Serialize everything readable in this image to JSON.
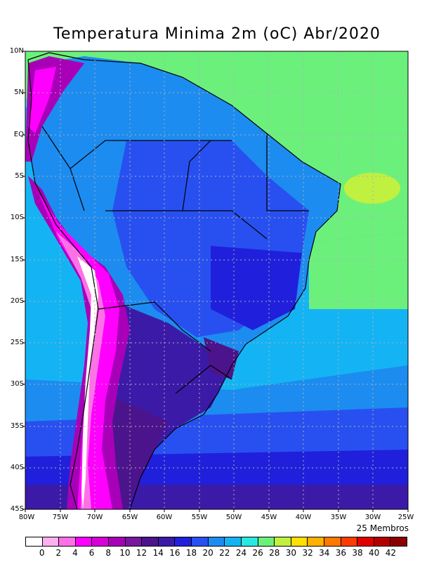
{
  "title": "Temperatura Minima 2m (oC) Abr/2020",
  "members_label": "25 Membros",
  "lat_ticks": [
    "10N",
    "5N",
    "EQ",
    "5S",
    "10S",
    "15S",
    "20S",
    "25S",
    "30S",
    "35S",
    "40S",
    "45S"
  ],
  "lon_ticks": [
    "80W",
    "75W",
    "70W",
    "65W",
    "60W",
    "55W",
    "50W",
    "45W",
    "40W",
    "35W",
    "30W",
    "25W"
  ],
  "colorbar": {
    "labels": [
      "0",
      "2",
      "4",
      "6",
      "8",
      "10",
      "12",
      "14",
      "16",
      "18",
      "20",
      "22",
      "24",
      "26",
      "28",
      "30",
      "32",
      "34",
      "36",
      "38",
      "40",
      "42"
    ],
    "colors": [
      "#ffffff",
      "#ffb0f0",
      "#ff70e8",
      "#ff00ff",
      "#d800d8",
      "#a800b8",
      "#78189c",
      "#4c148c",
      "#3c1aa8",
      "#2020dc",
      "#2850f0",
      "#1c8cf0",
      "#14b4f4",
      "#28e8e0",
      "#6cf07c",
      "#c0f040",
      "#ffe000",
      "#ffb000",
      "#ff7800",
      "#ff3c00",
      "#e00000",
      "#b40000",
      "#8c0000"
    ]
  },
  "field_colors": {
    "ocean_north": "#6cf07c",
    "ocean_south_deep": "#3c1aa8",
    "andes_peak": "#ff70e8"
  }
}
